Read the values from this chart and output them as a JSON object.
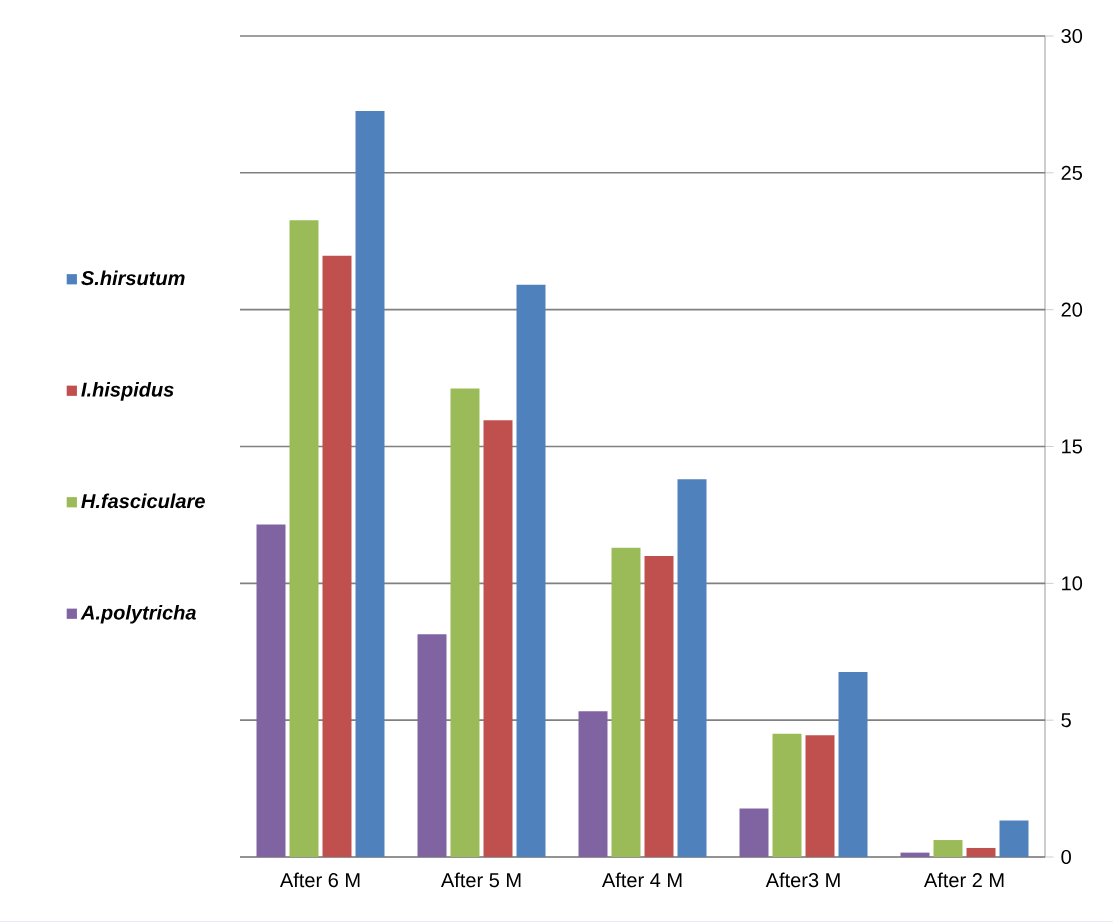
{
  "chart_data": {
    "type": "bar",
    "categories": [
      "After  6 M",
      "After 5 M",
      "After 4 M",
      "After3 M",
      "After 2 M"
    ],
    "series": [
      {
        "name": "A.polytricha",
        "color": "#8064a2",
        "values": [
          12.15,
          8.14,
          5.33,
          1.77,
          0.16
        ]
      },
      {
        "name": "H.fasciculare",
        "color": "#9bbb59",
        "values": [
          23.27,
          17.12,
          11.3,
          4.5,
          0.62
        ]
      },
      {
        "name": "I.hispidus",
        "color": "#c0504d",
        "values": [
          21.97,
          15.96,
          11.0,
          4.45,
          0.33
        ]
      },
      {
        "name": "S.hirsutum",
        "color": "#4f81bd",
        "values": [
          27.26,
          20.91,
          13.8,
          6.76,
          1.33
        ]
      }
    ],
    "ylim": [
      0,
      30
    ],
    "yticks": [
      0,
      5,
      10,
      15,
      20,
      25,
      30
    ],
    "grid": "y",
    "legend": "left"
  }
}
